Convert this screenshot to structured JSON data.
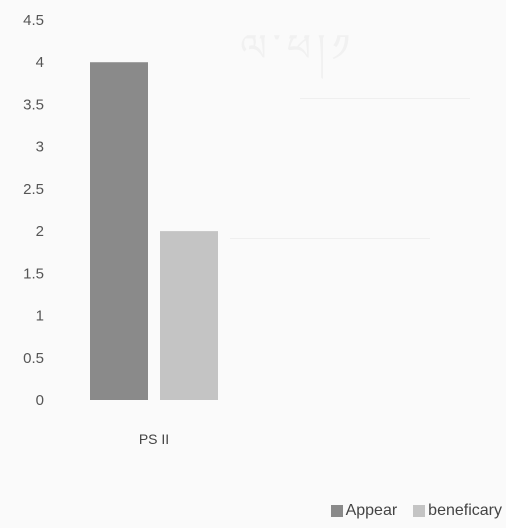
{
  "chart_data": {
    "type": "bar",
    "categories": [
      "PS II"
    ],
    "series": [
      {
        "name": "Appear",
        "values": [
          4
        ],
        "color": "#8a8a8a"
      },
      {
        "name": "beneficary",
        "values": [
          2
        ],
        "color": "#c4c4c4"
      }
    ],
    "ylim": [
      0,
      4.5
    ],
    "yticks": [
      "0",
      "0.5",
      "1",
      "1.5",
      "2",
      "2.5",
      "3",
      "3.5",
      "4",
      "4.5"
    ],
    "grid": false,
    "legend_position": "bottom-right",
    "title": "",
    "xlabel": "",
    "ylabel": ""
  }
}
